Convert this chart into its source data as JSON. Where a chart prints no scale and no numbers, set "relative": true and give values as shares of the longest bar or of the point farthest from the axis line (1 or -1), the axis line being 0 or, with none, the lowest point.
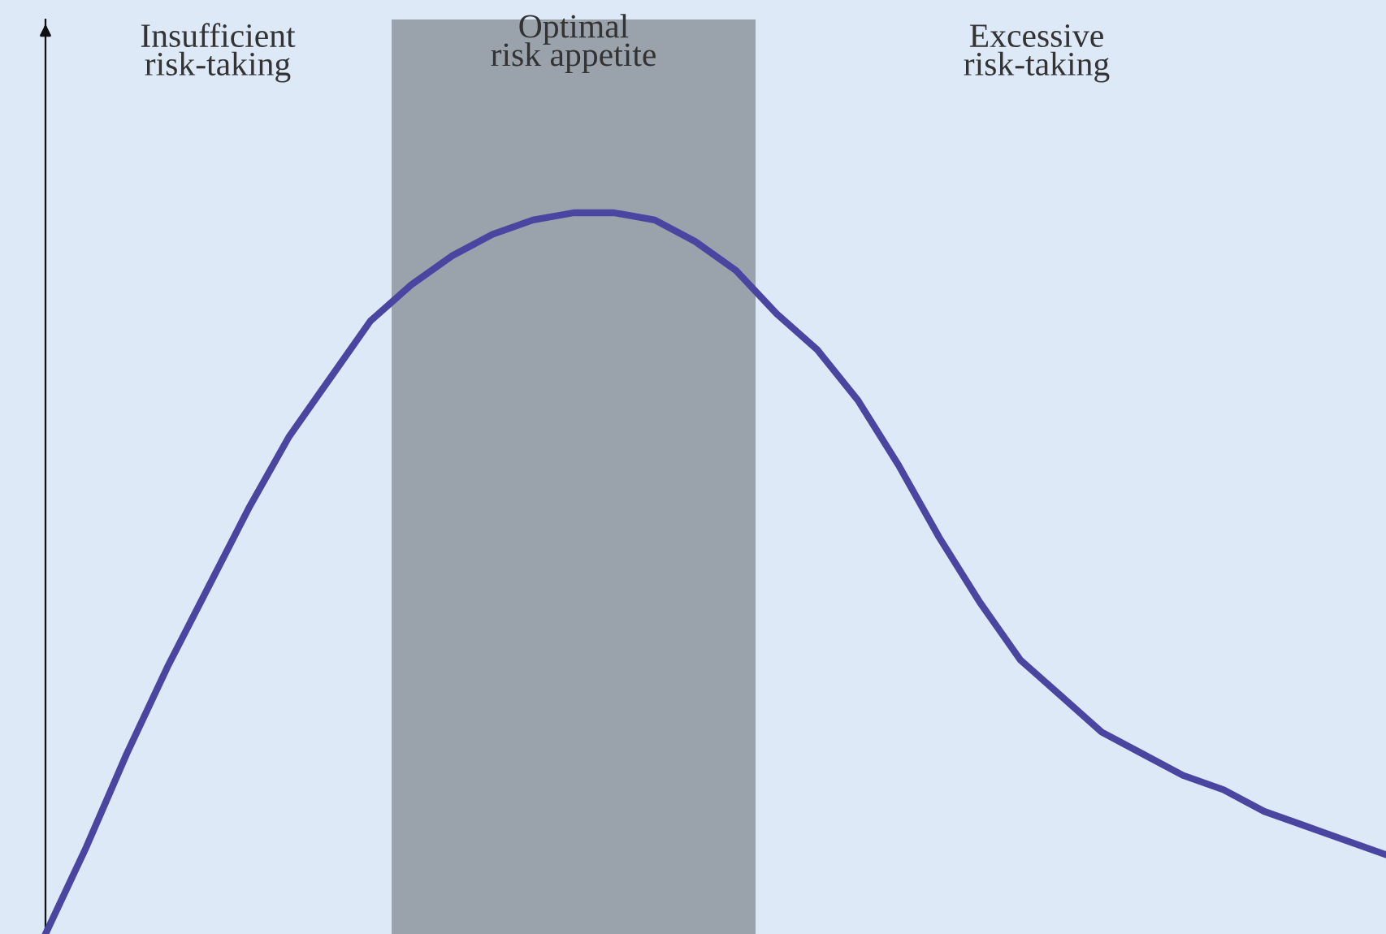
{
  "chart_data": {
    "type": "line",
    "relative": true,
    "marker": "none",
    "line_style": "solid",
    "categories": [
      null,
      null,
      null,
      null,
      null,
      null,
      null,
      null,
      null,
      null,
      null,
      null,
      null,
      null,
      null,
      null,
      null,
      null,
      null,
      null,
      null,
      null,
      null,
      null,
      null,
      null,
      null,
      null,
      null,
      null,
      null,
      null,
      null,
      null
    ],
    "series": [
      {
        "color": "#4a45a0",
        "values": [
          0,
          0.12,
          0.25,
          0.37,
          0.48,
          0.59,
          0.69,
          0.77,
          0.85,
          0.9,
          0.94,
          0.97,
          0.99,
          1.0,
          1.0,
          0.99,
          0.96,
          0.92,
          0.86,
          0.81,
          0.74,
          0.65,
          0.55,
          0.46,
          0.38,
          0.33,
          0.28,
          0.25,
          0.22,
          0.2,
          0.17,
          0.15,
          0.13,
          0.11
        ]
      }
    ],
    "annotations": [
      "Insufficient\nrisk-taking",
      "Optimal\nrisk appetite",
      "Excessive\nrisk-taking"
    ]
  }
}
